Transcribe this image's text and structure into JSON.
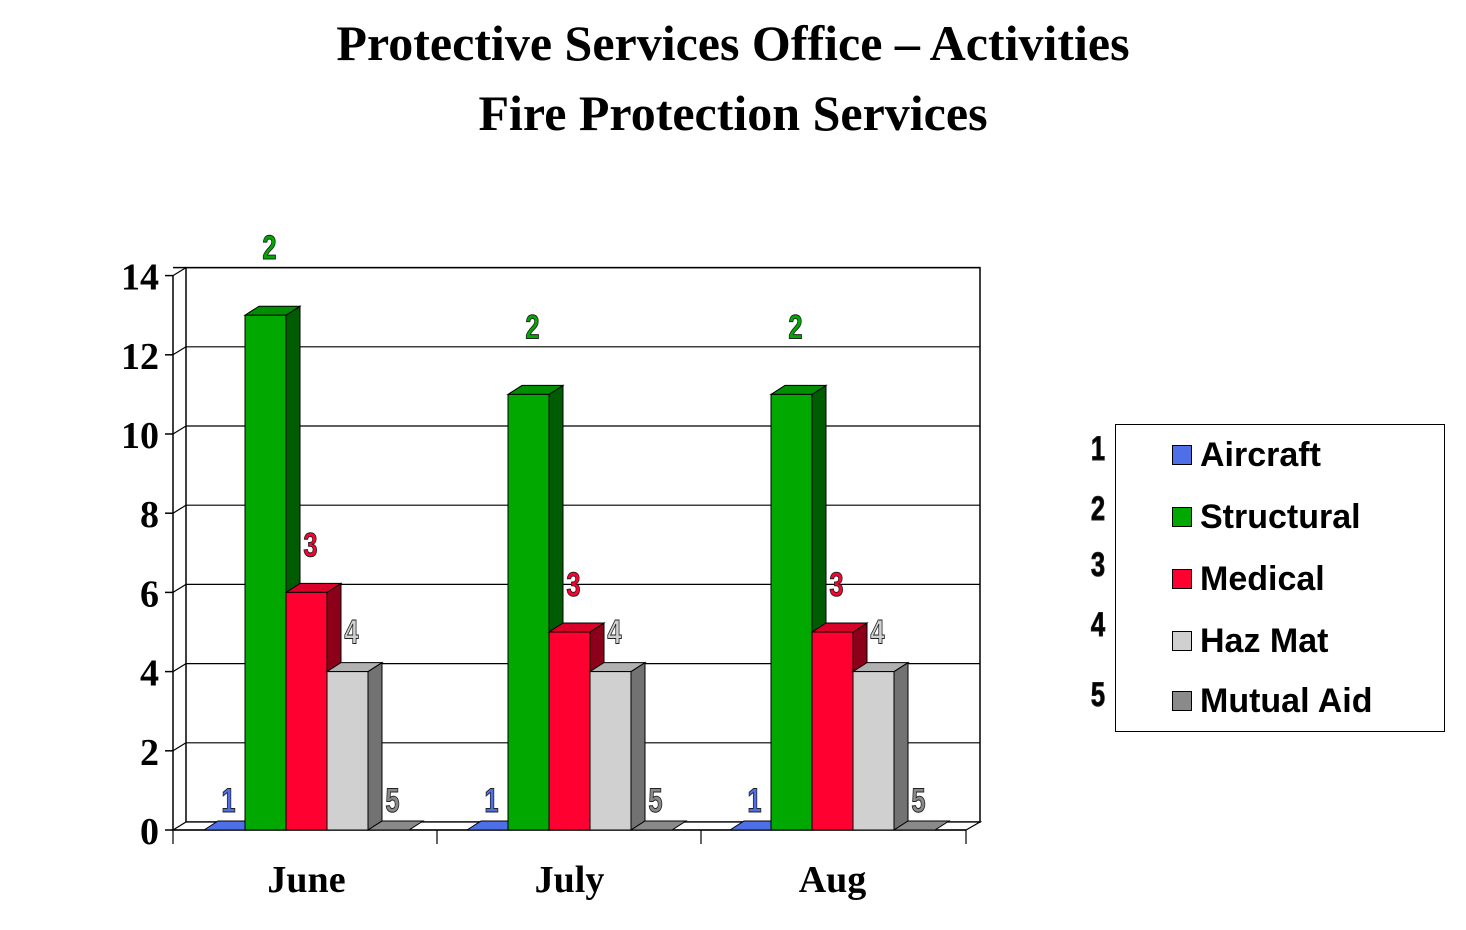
{
  "chart_data": {
    "type": "bar",
    "title": "Protective Services Office – Activities",
    "subtitle": "Fire Protection Services",
    "xlabel": "",
    "ylabel": "",
    "categories": [
      "June",
      "July",
      "Aug"
    ],
    "ylim": [
      0,
      14
    ],
    "yticks": [
      0,
      2,
      4,
      6,
      8,
      10,
      12,
      14
    ],
    "grid": true,
    "legend_position": "right",
    "series": [
      {
        "name": "Aircraft",
        "marker": "1",
        "color": "#4f6fe8",
        "values": [
          0,
          0,
          0
        ]
      },
      {
        "name": "Structural",
        "marker": "2",
        "color": "#00a800",
        "values": [
          13,
          11,
          11
        ]
      },
      {
        "name": "Medical",
        "marker": "3",
        "color": "#ff0030",
        "values": [
          6,
          5,
          5
        ]
      },
      {
        "name": "Haz Mat",
        "marker": "4",
        "color": "#d0d0d0",
        "values": [
          4,
          4,
          4
        ]
      },
      {
        "name": "Mutual Aid",
        "marker": "5",
        "color": "#8a8a8a",
        "values": [
          0,
          0,
          0
        ]
      }
    ]
  }
}
